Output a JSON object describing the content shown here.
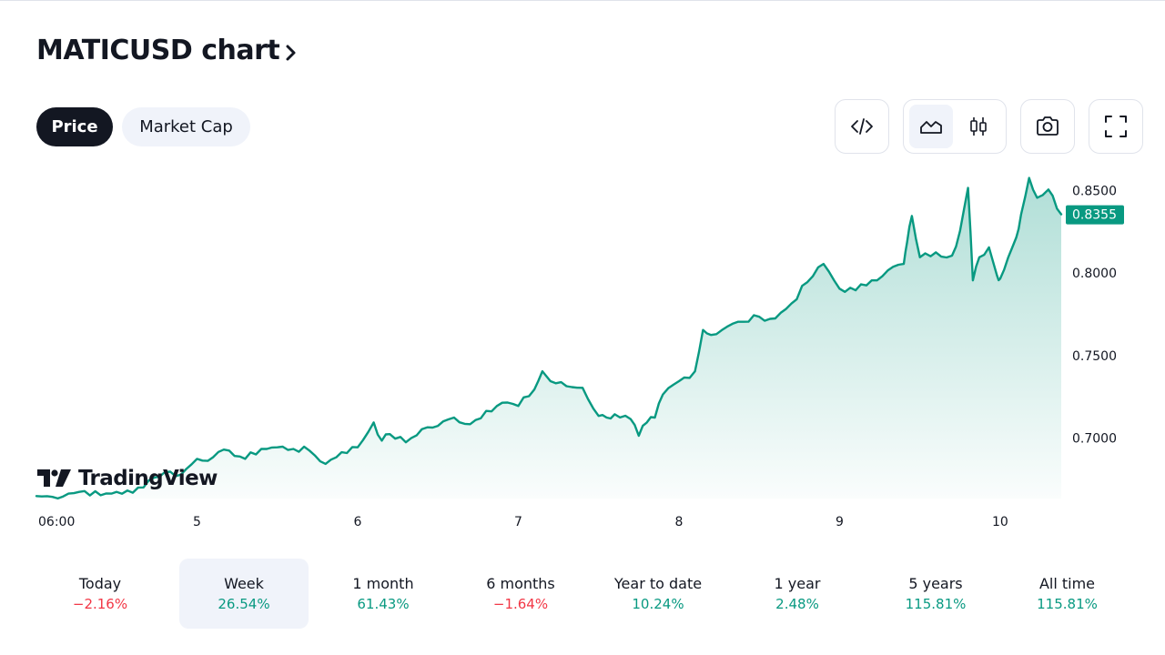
{
  "header": {
    "title": "MATICUSD chart"
  },
  "tabs": [
    {
      "label": "Price",
      "active": true
    },
    {
      "label": "Market Cap",
      "active": false
    }
  ],
  "toolbar": {
    "buttons": [
      {
        "icon": "embed-code-icon"
      },
      {
        "icon": "area-chart-icon",
        "active": true
      },
      {
        "icon": "candlestick-icon"
      },
      {
        "icon": "camera-icon"
      },
      {
        "icon": "fullscreen-icon"
      }
    ]
  },
  "colors": {
    "line": "#089981",
    "area_top": "#089981",
    "positive": "#089981",
    "negative": "#f23645",
    "active_pill": "#131722"
  },
  "watermark": "TradingView",
  "chart_data": {
    "type": "area",
    "symbol": "MATICUSD",
    "x_tick_labels": [
      "06:00",
      "5",
      "6",
      "7",
      "8",
      "9",
      "10"
    ],
    "x_tick_positions_days": [
      4.25,
      5,
      6,
      7,
      8,
      9,
      10
    ],
    "x_range_days": [
      4.0,
      10.38
    ],
    "y_ticks": [
      "0.8500",
      "0.8000",
      "0.7500",
      "0.7000"
    ],
    "ylim": [
      0.6635,
      0.8595
    ],
    "last_value_label": "0.8355",
    "last_value": 0.8355,
    "grid": false,
    "x_days": [
      4.0,
      4.1,
      4.2,
      4.3,
      4.4,
      4.5,
      4.6,
      4.7,
      4.8,
      4.9,
      5.0,
      5.1,
      5.2,
      5.3,
      5.4,
      5.5,
      5.6,
      5.7,
      5.8,
      5.9,
      6.0,
      6.1,
      6.15,
      6.2,
      6.3,
      6.4,
      6.5,
      6.6,
      6.7,
      6.8,
      6.9,
      7.0,
      7.1,
      7.15,
      7.2,
      7.3,
      7.4,
      7.5,
      7.55,
      7.6,
      7.7,
      7.75,
      7.8,
      7.85,
      7.9,
      8.0,
      8.1,
      8.15,
      8.2,
      8.3,
      8.4,
      8.5,
      8.6,
      8.7,
      8.8,
      8.9,
      9.0,
      9.1,
      9.2,
      9.3,
      9.4,
      9.42,
      9.45,
      9.5,
      9.6,
      9.7,
      9.75,
      9.8,
      9.83,
      9.87,
      9.93,
      9.98,
      10.0,
      10.05,
      10.1,
      10.13,
      10.18,
      10.23,
      10.3,
      10.38
    ],
    "values": [
      0.665,
      0.6645,
      0.6665,
      0.668,
      0.6655,
      0.6675,
      0.667,
      0.6745,
      0.6795,
      0.678,
      0.6875,
      0.6885,
      0.6925,
      0.6875,
      0.6935,
      0.6945,
      0.6935,
      0.6925,
      0.6845,
      0.6915,
      0.6945,
      0.7095,
      0.6985,
      0.7025,
      0.6975,
      0.7055,
      0.7075,
      0.7125,
      0.7085,
      0.7165,
      0.7215,
      0.7195,
      0.7295,
      0.7405,
      0.7345,
      0.7315,
      0.7305,
      0.7135,
      0.7125,
      0.7145,
      0.7115,
      0.7015,
      0.7095,
      0.7125,
      0.7265,
      0.7345,
      0.7405,
      0.7655,
      0.7625,
      0.7675,
      0.7705,
      0.7735,
      0.7725,
      0.7815,
      0.7945,
      0.8055,
      0.7905,
      0.7895,
      0.7955,
      0.8015,
      0.8055,
      0.8185,
      0.8345,
      0.8095,
      0.8125,
      0.8105,
      0.8255,
      0.8515,
      0.7955,
      0.8095,
      0.8155,
      0.7985,
      0.7965,
      0.8095,
      0.8215,
      0.8355,
      0.8575,
      0.8455,
      0.8505,
      0.8355
    ]
  },
  "performance": [
    {
      "label": "Today",
      "value": "−2.16%",
      "trend": "neg",
      "active": false
    },
    {
      "label": "Week",
      "value": "26.54%",
      "trend": "pos",
      "active": true
    },
    {
      "label": "1 month",
      "value": "61.43%",
      "trend": "pos",
      "active": false
    },
    {
      "label": "6 months",
      "value": "−1.64%",
      "trend": "neg",
      "active": false
    },
    {
      "label": "Year to date",
      "value": "10.24%",
      "trend": "pos",
      "active": false
    },
    {
      "label": "1 year",
      "value": "2.48%",
      "trend": "pos",
      "active": false
    },
    {
      "label": "5 years",
      "value": "115.81%",
      "trend": "pos",
      "active": false
    },
    {
      "label": "All time",
      "value": "115.81%",
      "trend": "pos",
      "active": false
    }
  ]
}
